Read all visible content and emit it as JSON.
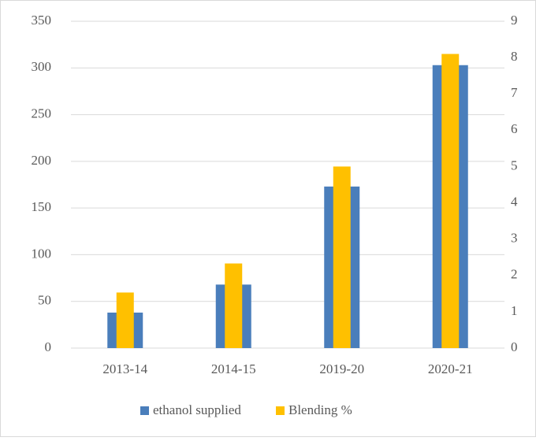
{
  "chart_data": {
    "type": "bar",
    "categories": [
      "2013-14",
      "2014-15",
      "2019-20",
      "2020-21"
    ],
    "series": [
      {
        "name": "ethanol supplied",
        "color": "#4a7ebb",
        "values": [
          38,
          68,
          173,
          303
        ]
      },
      {
        "name": "Blending %",
        "color": "#ffc000",
        "values": [
          1.53,
          2.33,
          5.0,
          8.1
        ],
        "axis": "y2"
      }
    ],
    "ylim": [
      0,
      350
    ],
    "yticks": [
      0,
      50,
      100,
      150,
      200,
      250,
      300,
      350
    ],
    "y2lim": [
      0,
      9
    ],
    "y2ticks": [
      0,
      1,
      2,
      3,
      4,
      5,
      6,
      7,
      8,
      9
    ],
    "grid": true,
    "legend": "bottom"
  }
}
